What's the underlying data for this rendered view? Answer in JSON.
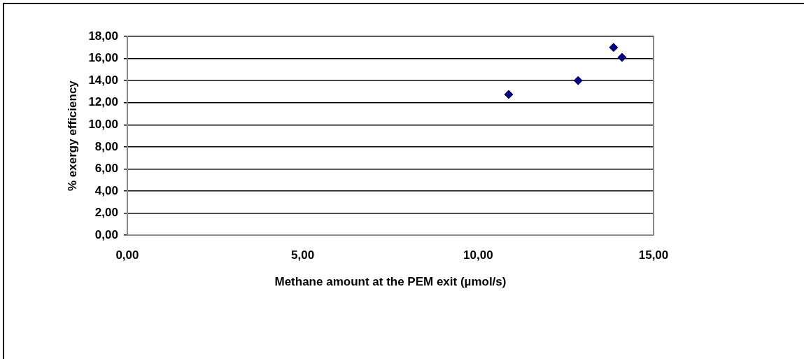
{
  "chart_data": {
    "type": "scatter",
    "xlabel": "Methane amount at the PEM exit (µmol/s)",
    "ylabel": "% exergy efficiency",
    "x": [
      10.87,
      12.85,
      13.86,
      14.1
    ],
    "series": [
      {
        "color": "#000080",
        "values": [
          12.75,
          14.0,
          17.0,
          16.1
        ]
      }
    ],
    "xlim": [
      0,
      15
    ],
    "xticks": [
      {
        "value": 0,
        "label": "0,00"
      },
      {
        "value": 5,
        "label": "5,00"
      },
      {
        "value": 10,
        "label": "10,00"
      },
      {
        "value": 15,
        "label": "15,00"
      }
    ],
    "ylim": [
      0,
      18
    ],
    "yticks": [
      {
        "value": 0,
        "label": "0,00"
      },
      {
        "value": 2,
        "label": "2,00"
      },
      {
        "value": 4,
        "label": "4,00"
      },
      {
        "value": 6,
        "label": "6,00"
      },
      {
        "value": 8,
        "label": "8,00"
      },
      {
        "value": 10,
        "label": "10,00"
      },
      {
        "value": 12,
        "label": "12,00"
      },
      {
        "value": 14,
        "label": "14,00"
      },
      {
        "value": 16,
        "label": "16,00"
      },
      {
        "value": 18,
        "label": "18,00"
      }
    ],
    "grid": "y",
    "legend": false,
    "marker": "diamond"
  }
}
